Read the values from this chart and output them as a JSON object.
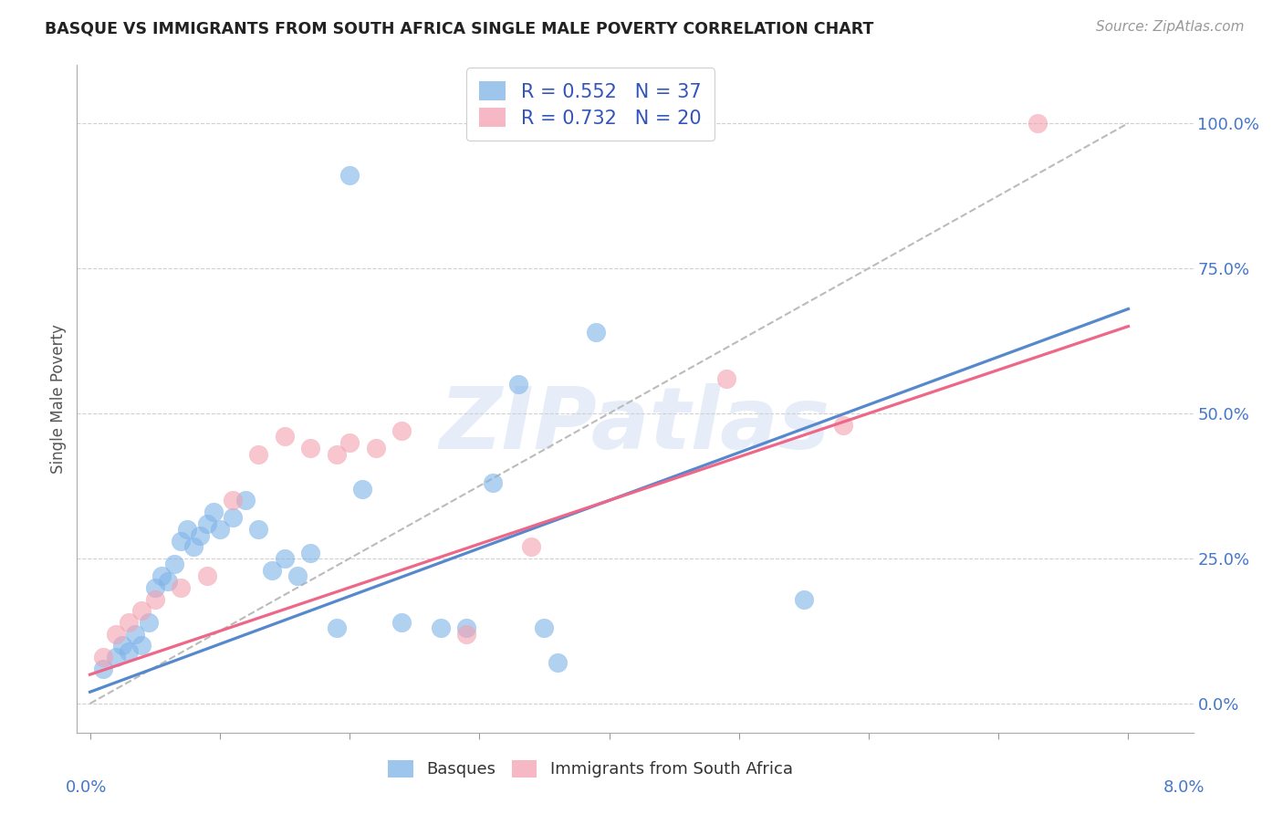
{
  "title": "BASQUE VS IMMIGRANTS FROM SOUTH AFRICA SINGLE MALE POVERTY CORRELATION CHART",
  "source": "Source: ZipAtlas.com",
  "ylabel": "Single Male Poverty",
  "right_yticks": [
    "0.0%",
    "25.0%",
    "50.0%",
    "75.0%",
    "100.0%"
  ],
  "right_ytick_vals": [
    0,
    25,
    50,
    75,
    100
  ],
  "xtick_vals": [
    0,
    1,
    2,
    3,
    4,
    5,
    6,
    7,
    8
  ],
  "xtick_labels": [
    "0.0%",
    "",
    "",
    "",
    "",
    "",
    "",
    "",
    "8.0%"
  ],
  "legend_blue_r": "R = 0.552",
  "legend_blue_n": "N = 37",
  "legend_pink_r": "R = 0.732",
  "legend_pink_n": "N = 20",
  "legend_label_blue": "Basques",
  "legend_label_pink": "Immigrants from South Africa",
  "blue_color": "#7EB3E8",
  "pink_color": "#F4A0B0",
  "blue_line_color": "#5588CC",
  "pink_line_color": "#EE6688",
  "blue_scatter": [
    [
      0.1,
      6
    ],
    [
      0.2,
      8
    ],
    [
      0.25,
      10
    ],
    [
      0.3,
      9
    ],
    [
      0.35,
      12
    ],
    [
      0.4,
      10
    ],
    [
      0.45,
      14
    ],
    [
      0.5,
      20
    ],
    [
      0.55,
      22
    ],
    [
      0.6,
      21
    ],
    [
      0.65,
      24
    ],
    [
      0.7,
      28
    ],
    [
      0.75,
      30
    ],
    [
      0.8,
      27
    ],
    [
      0.85,
      29
    ],
    [
      0.9,
      31
    ],
    [
      0.95,
      33
    ],
    [
      1.0,
      30
    ],
    [
      1.1,
      32
    ],
    [
      1.2,
      35
    ],
    [
      1.3,
      30
    ],
    [
      1.4,
      23
    ],
    [
      1.5,
      25
    ],
    [
      1.6,
      22
    ],
    [
      1.7,
      26
    ],
    [
      1.9,
      13
    ],
    [
      2.1,
      37
    ],
    [
      2.4,
      14
    ],
    [
      2.7,
      13
    ],
    [
      2.9,
      13
    ],
    [
      3.1,
      38
    ],
    [
      3.3,
      55
    ],
    [
      3.5,
      13
    ],
    [
      3.6,
      7
    ],
    [
      3.9,
      64
    ],
    [
      5.5,
      18
    ],
    [
      2.0,
      91
    ]
  ],
  "pink_scatter": [
    [
      0.1,
      8
    ],
    [
      0.2,
      12
    ],
    [
      0.3,
      14
    ],
    [
      0.4,
      16
    ],
    [
      0.5,
      18
    ],
    [
      0.7,
      20
    ],
    [
      0.9,
      22
    ],
    [
      1.1,
      35
    ],
    [
      1.3,
      43
    ],
    [
      1.5,
      46
    ],
    [
      1.7,
      44
    ],
    [
      1.9,
      43
    ],
    [
      2.0,
      45
    ],
    [
      2.2,
      44
    ],
    [
      2.4,
      47
    ],
    [
      2.9,
      12
    ],
    [
      3.4,
      27
    ],
    [
      4.9,
      56
    ],
    [
      5.8,
      48
    ],
    [
      7.3,
      100
    ]
  ],
  "blue_line": [
    [
      0,
      2
    ],
    [
      8,
      68
    ]
  ],
  "pink_line": [
    [
      0,
      5
    ],
    [
      8,
      65
    ]
  ],
  "diag_line": [
    [
      0,
      0
    ],
    [
      8,
      100
    ]
  ],
  "xlim": [
    -0.1,
    8.5
  ],
  "ylim": [
    -5,
    110
  ],
  "background_color": "#ffffff",
  "grid_color": "#d0d0d0",
  "watermark": "ZIPatlas",
  "watermark_color": "#c8d8f0"
}
